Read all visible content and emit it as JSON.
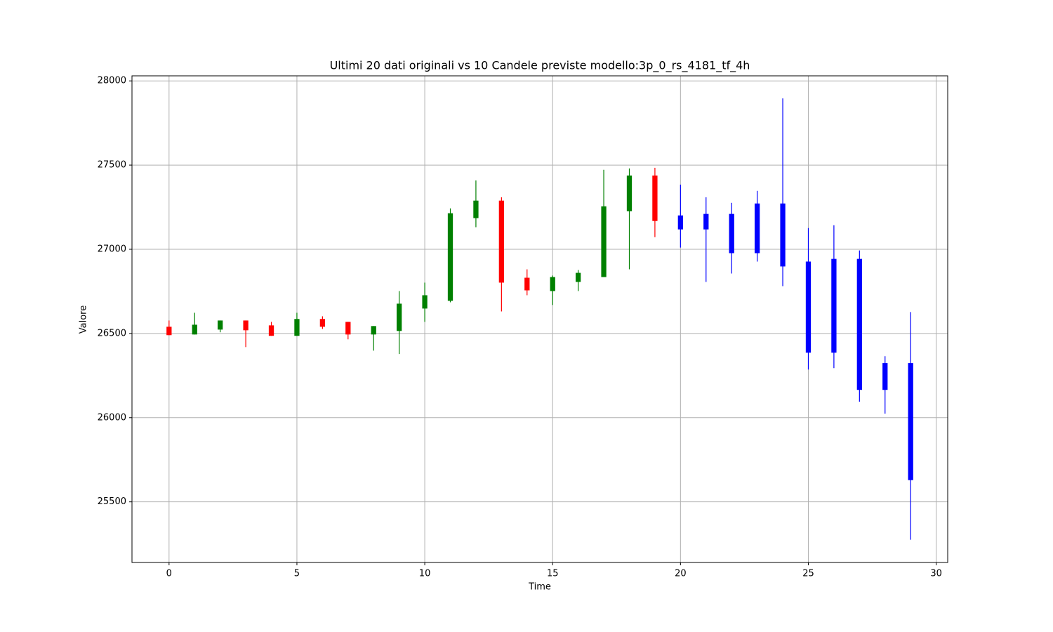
{
  "chart_data": {
    "type": "candlestick",
    "title": "Ultimi 20 dati originali vs 10 Candele previste modello:3p_0_rs_4181_tf_4h",
    "x_label": "Time",
    "y_label": "Valore",
    "x": [
      0,
      1,
      2,
      3,
      4,
      5,
      6,
      7,
      8,
      9,
      10,
      11,
      12,
      13,
      14,
      15,
      16,
      17,
      18,
      19,
      20,
      21,
      22,
      23,
      24,
      25,
      26,
      27,
      28,
      29
    ],
    "open": [
      26540,
      26494,
      26523,
      26577,
      26548,
      26486,
      26586,
      26569,
      26494,
      26515,
      26648,
      26694,
      27185,
      27289,
      26831,
      26752,
      26806,
      26835,
      27226,
      27438,
      27201,
      27118,
      27210,
      26977,
      27272,
      26927,
      26943,
      26943,
      26324,
      26324
    ],
    "high": [
      26577,
      26623,
      26577,
      26577,
      26569,
      26623,
      26602,
      26569,
      26544,
      26752,
      26802,
      27243,
      27409,
      27309,
      26881,
      26844,
      26877,
      27472,
      27480,
      27484,
      27384,
      27309,
      27276,
      27347,
      27896,
      27126,
      27143,
      26993,
      26365,
      26627
    ],
    "low": [
      26490,
      26494,
      26507,
      26419,
      26486,
      26486,
      26527,
      26465,
      26398,
      26378,
      26569,
      26685,
      27131,
      26631,
      26727,
      26669,
      26752,
      26835,
      26881,
      27072,
      27010,
      26806,
      26856,
      26927,
      26781,
      26286,
      26294,
      26095,
      26024,
      25275
    ],
    "close": [
      26490,
      26552,
      26577,
      26519,
      26486,
      26586,
      26540,
      26494,
      26544,
      26677,
      26727,
      27214,
      27289,
      26802,
      26756,
      26835,
      26860,
      27255,
      27438,
      27168,
      27118,
      27210,
      26977,
      27272,
      26898,
      26386,
      26386,
      26165,
      26165,
      25629
    ],
    "colors": [
      "red",
      "green",
      "green",
      "red",
      "red",
      "green",
      "red",
      "red",
      "green",
      "green",
      "green",
      "green",
      "green",
      "red",
      "red",
      "green",
      "green",
      "green",
      "green",
      "red",
      "blue",
      "blue",
      "blue",
      "blue",
      "blue",
      "blue",
      "blue",
      "blue",
      "blue",
      "blue"
    ],
    "xlim": [
      -1.45,
      30.45
    ],
    "ylim": [
      25140,
      28030
    ],
    "xticks": [
      0,
      5,
      10,
      15,
      20,
      25,
      30
    ],
    "yticks": [
      25500,
      26000,
      26500,
      27000,
      27500,
      28000
    ],
    "grid": true
  }
}
